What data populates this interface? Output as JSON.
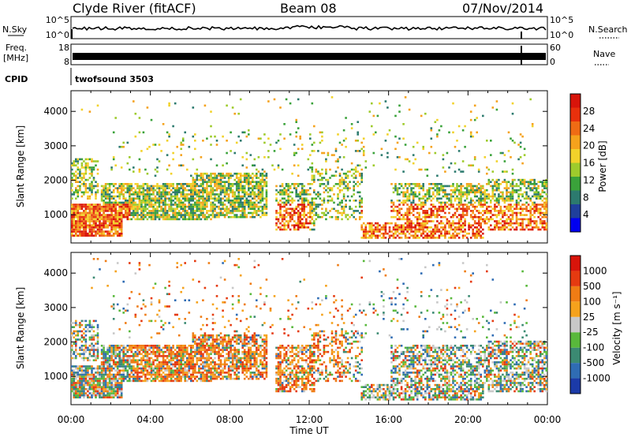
{
  "header": {
    "station": "Clyde River (fitACF)",
    "beam": "Beam 08",
    "date": "07/Nov/2014"
  },
  "top_panels": {
    "nsky_label": "N.Sky",
    "nsearch_label": "N.Search",
    "nsky_ticks": [
      "10^5",
      "10^0"
    ],
    "nsearch_ticks": [
      "10^5",
      "10^0"
    ],
    "freq_label": "Freq.",
    "freq_unit": "[MHz]",
    "freq_ticks": [
      "18",
      "8"
    ],
    "nave_label": "Nave",
    "nave_ticks": [
      "60",
      "0"
    ],
    "cpid_label": "CPID",
    "cpid_value": "twofsound 3503"
  },
  "chart_data": [
    {
      "type": "heatmap",
      "name": "power",
      "ylabel": "Slant Range [km]",
      "ylim": [
        180,
        4600
      ],
      "yticks": [
        "1000",
        "2000",
        "3000",
        "4000"
      ],
      "colorbar_label": "Power [dB]",
      "colorbar_ticks": [
        "28",
        "24",
        "20",
        "16",
        "12",
        "8",
        "4"
      ],
      "colors": [
        "#0000f0",
        "#1f3f9c",
        "#2c7a6e",
        "#3aa23a",
        "#9ecb2c",
        "#f2d22a",
        "#f5a21c",
        "#ef6b14",
        "#e8300c",
        "#d8140a"
      ]
    },
    {
      "type": "heatmap",
      "name": "velocity",
      "ylabel": "Slant Range [km]",
      "ylim": [
        180,
        4600
      ],
      "yticks": [
        "1000",
        "2000",
        "3000",
        "4000"
      ],
      "colorbar_label": "Velocity [m s⁻¹]",
      "colorbar_ticks": [
        "1000",
        "500",
        "100",
        "25",
        "-25",
        "-100",
        "-500",
        "-1000"
      ],
      "colors": [
        "#1b3aa8",
        "#2f6cb4",
        "#3b8a72",
        "#58b83b",
        "#c8c8c8",
        "#f5a21c",
        "#ef7c14",
        "#e53a10",
        "#d8140a"
      ]
    }
  ],
  "x_axis": {
    "label": "Time UT",
    "ticks": [
      "00:00",
      "04:00",
      "08:00",
      "12:00",
      "16:00",
      "20:00",
      "00:00"
    ]
  }
}
